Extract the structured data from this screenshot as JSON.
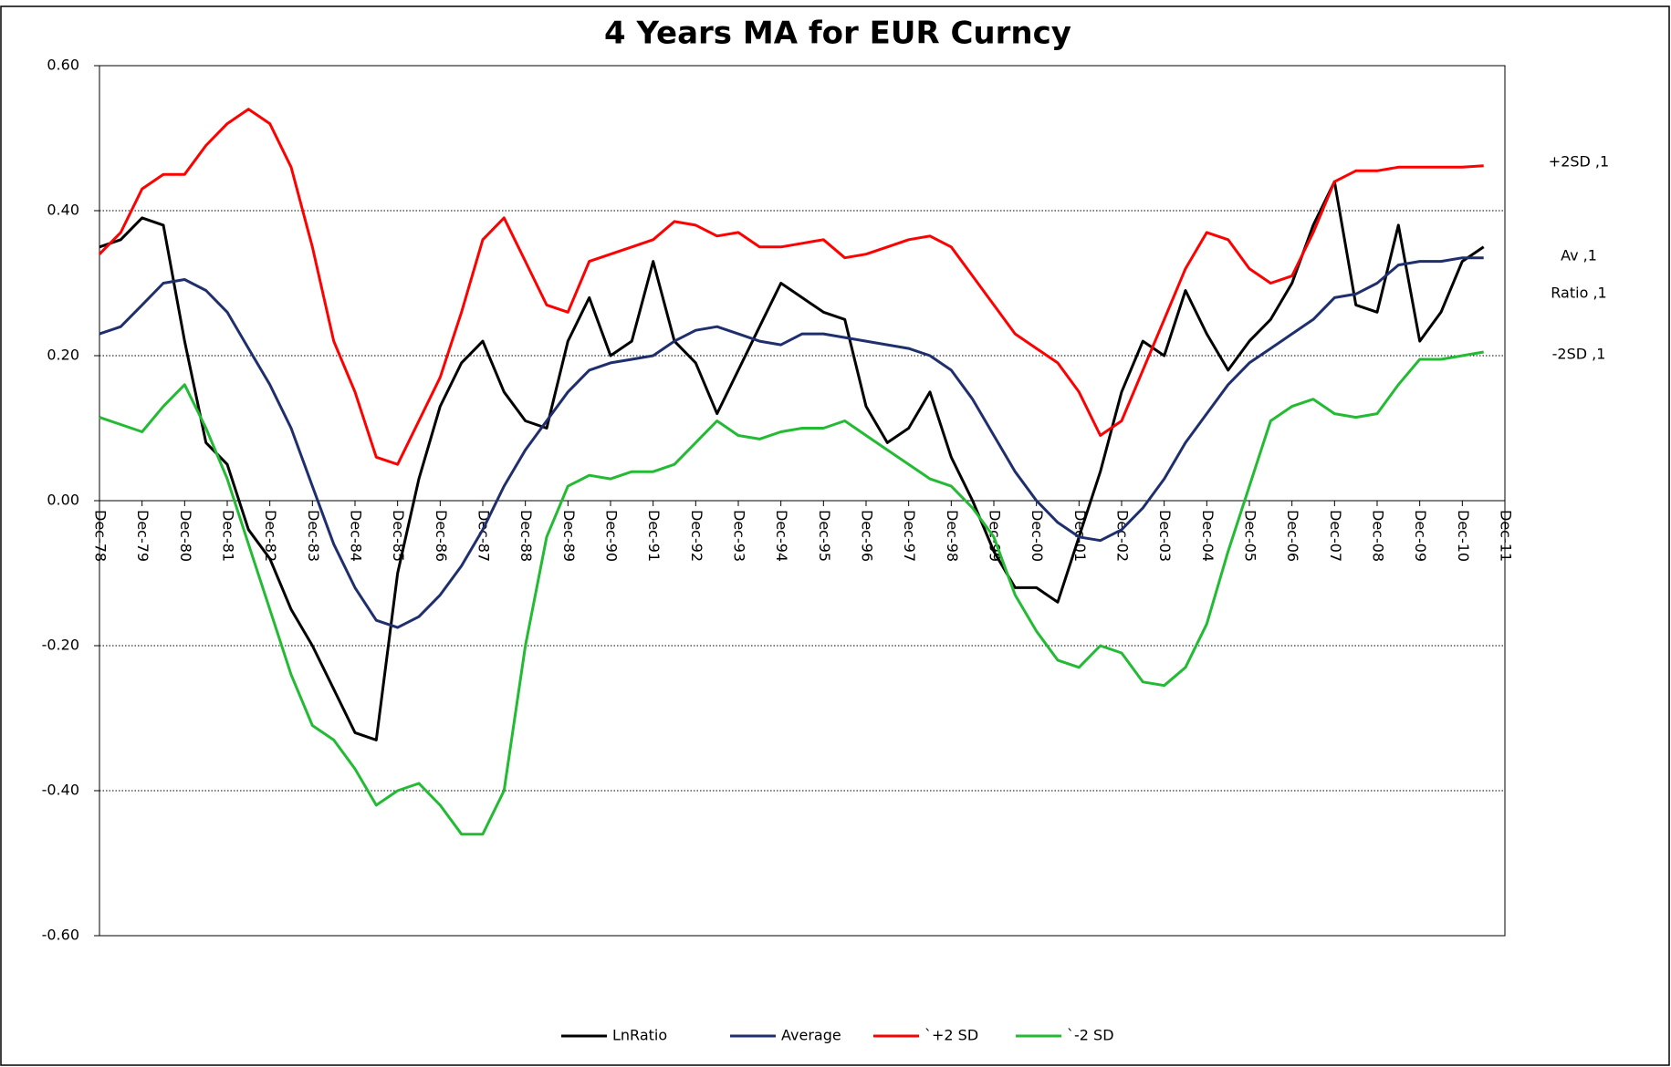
{
  "chart_data": {
    "type": "line",
    "title": "4 Years MA for EUR Curncy",
    "categories": [
      "Dec-78",
      null,
      "Dec-79",
      null,
      "Dec-80",
      null,
      "Dec-81",
      null,
      "Dec-82",
      null,
      "Dec-83",
      null,
      "Dec-84",
      null,
      "Dec-85",
      null,
      "Dec-86",
      null,
      "Dec-87",
      null,
      "Dec-88",
      null,
      "Dec-89",
      null,
      "Dec-90",
      null,
      "Dec-91",
      null,
      "Dec-92",
      null,
      "Dec-93",
      null,
      "Dec-94",
      null,
      "Dec-95",
      null,
      "Dec-96",
      null,
      "Dec-97",
      null,
      "Dec-98",
      null,
      "Dec-99",
      null,
      "Dec-00",
      null,
      "Dec-01",
      null,
      "Dec-02",
      null,
      "Dec-03",
      null,
      "Dec-04",
      null,
      "Dec-05",
      null,
      "Dec-06",
      null,
      "Dec-07",
      null,
      "Dec-08",
      null,
      "Dec-09",
      null,
      "Dec-10",
      null,
      "Dec-11"
    ],
    "series": [
      {
        "name": "LnRatio",
        "color": "#000000",
        "values": [
          0.35,
          0.36,
          0.39,
          0.38,
          0.22,
          0.08,
          0.05,
          -0.04,
          -0.08,
          -0.15,
          -0.2,
          -0.26,
          -0.32,
          -0.33,
          -0.1,
          0.03,
          0.13,
          0.19,
          0.22,
          0.15,
          0.11,
          0.1,
          0.22,
          0.28,
          0.2,
          0.22,
          0.33,
          0.22,
          0.19,
          0.12,
          0.18,
          0.24,
          0.3,
          0.28,
          0.26,
          0.25,
          0.13,
          0.08,
          0.1,
          0.15,
          0.06,
          0.0,
          -0.07,
          -0.12,
          -0.12,
          -0.14,
          -0.05,
          0.04,
          0.15,
          0.22,
          0.2,
          0.29,
          0.23,
          0.18,
          0.22,
          0.25,
          0.3,
          0.38,
          0.44,
          0.27,
          0.26,
          0.38,
          0.22,
          0.26,
          0.33,
          0.35,
          null
        ]
      },
      {
        "name": "Average",
        "color": "#1f2f6e",
        "values": [
          0.23,
          0.24,
          0.27,
          0.3,
          0.305,
          0.29,
          0.26,
          0.21,
          0.16,
          0.1,
          0.02,
          -0.06,
          -0.12,
          -0.165,
          -0.175,
          -0.16,
          -0.13,
          -0.09,
          -0.04,
          0.02,
          0.07,
          0.11,
          0.15,
          0.18,
          0.19,
          0.195,
          0.2,
          0.22,
          0.235,
          0.24,
          0.23,
          0.22,
          0.215,
          0.23,
          0.23,
          0.225,
          0.22,
          0.215,
          0.21,
          0.2,
          0.18,
          0.14,
          0.09,
          0.04,
          0.0,
          -0.03,
          -0.05,
          -0.055,
          -0.04,
          -0.01,
          0.03,
          0.08,
          0.12,
          0.16,
          0.19,
          0.21,
          0.23,
          0.25,
          0.28,
          0.285,
          0.3,
          0.325,
          0.33,
          0.33,
          0.335,
          0.335,
          null
        ]
      },
      {
        "name": "`+2 SD",
        "color": "#ff0000",
        "values": [
          0.34,
          0.37,
          0.43,
          0.45,
          0.45,
          0.49,
          0.52,
          0.54,
          0.52,
          0.46,
          0.35,
          0.22,
          0.15,
          0.06,
          0.05,
          0.11,
          0.17,
          0.26,
          0.36,
          0.39,
          0.33,
          0.27,
          0.26,
          0.33,
          0.34,
          0.35,
          0.36,
          0.385,
          0.38,
          0.365,
          0.37,
          0.35,
          0.35,
          0.355,
          0.36,
          0.335,
          0.34,
          0.35,
          0.36,
          0.365,
          0.35,
          0.31,
          0.27,
          0.23,
          0.21,
          0.19,
          0.15,
          0.09,
          0.11,
          0.18,
          0.25,
          0.32,
          0.37,
          0.36,
          0.32,
          0.3,
          0.31,
          0.37,
          0.44,
          0.455,
          0.455,
          0.46,
          0.46,
          0.46,
          0.46,
          0.462,
          null
        ]
      },
      {
        "name": "`-2 SD",
        "color": "#22bb33",
        "values": [
          0.115,
          0.105,
          0.095,
          0.13,
          0.16,
          0.1,
          0.03,
          -0.06,
          -0.15,
          -0.24,
          -0.31,
          -0.33,
          -0.37,
          -0.42,
          -0.4,
          -0.39,
          -0.42,
          -0.46,
          -0.46,
          -0.4,
          -0.2,
          -0.05,
          0.02,
          0.035,
          0.03,
          0.04,
          0.04,
          0.05,
          0.08,
          0.11,
          0.09,
          0.085,
          0.095,
          0.1,
          0.1,
          0.11,
          0.09,
          0.07,
          0.05,
          0.03,
          0.02,
          -0.01,
          -0.05,
          -0.13,
          -0.18,
          -0.22,
          -0.23,
          -0.2,
          -0.21,
          -0.25,
          -0.255,
          -0.23,
          -0.17,
          -0.07,
          0.02,
          0.11,
          0.13,
          0.14,
          0.12,
          0.115,
          0.12,
          0.16,
          0.195,
          0.195,
          0.2,
          0.205,
          null
        ]
      }
    ],
    "ylim": [
      -0.6,
      0.6
    ],
    "yticks": [
      {
        "value": -0.6,
        "label": "-0.60"
      },
      {
        "value": -0.4,
        "label": "-0.40"
      },
      {
        "value": -0.2,
        "label": "-0.20"
      },
      {
        "value": 0,
        "label": "0.00"
      },
      {
        "value": 0.2,
        "label": "0.20"
      },
      {
        "value": 0.4,
        "label": "0.40"
      },
      {
        "value": 0.6,
        "label": "0.60"
      }
    ],
    "grid": true,
    "legend": "bottom",
    "annotations": [
      "+2SD ,1",
      "Av ,1",
      "Ratio ,1",
      "-2SD ,1"
    ]
  }
}
